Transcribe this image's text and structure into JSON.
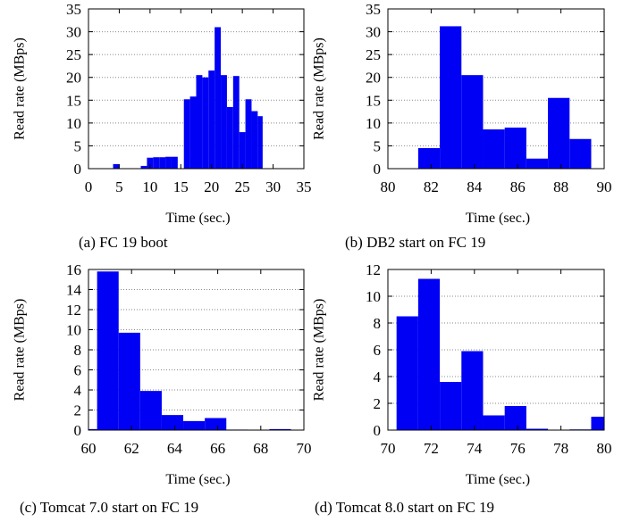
{
  "chart_data": [
    {
      "type": "bar",
      "caption": "(a) FC 19 boot",
      "xlabel": "Time (sec.)",
      "ylabel": "Read rate (MBps)",
      "xlim": [
        0,
        35
      ],
      "ylim": [
        0,
        35
      ],
      "xticks": [
        0,
        5,
        10,
        15,
        20,
        25,
        30,
        35
      ],
      "yticks": [
        0,
        5,
        10,
        15,
        20,
        25,
        30,
        35
      ],
      "grid": "horizontal-dotted",
      "bars": [
        {
          "x0": 4,
          "x1": 5,
          "y": 1.0
        },
        {
          "x0": 8.5,
          "x1": 9.5,
          "y": 0.6
        },
        {
          "x0": 9.5,
          "x1": 10.5,
          "y": 2.4
        },
        {
          "x0": 10.5,
          "x1": 11.5,
          "y": 2.5
        },
        {
          "x0": 11.5,
          "x1": 12.5,
          "y": 2.5
        },
        {
          "x0": 12.5,
          "x1": 13.5,
          "y": 2.6
        },
        {
          "x0": 13.5,
          "x1": 14.5,
          "y": 2.6
        },
        {
          "x0": 15.5,
          "x1": 16.5,
          "y": 15.2
        },
        {
          "x0": 16.5,
          "x1": 17.5,
          "y": 15.8
        },
        {
          "x0": 17.5,
          "x1": 18.5,
          "y": 20.5
        },
        {
          "x0": 18.5,
          "x1": 19.5,
          "y": 20.0
        },
        {
          "x0": 19.5,
          "x1": 20.5,
          "y": 21.5
        },
        {
          "x0": 20.5,
          "x1": 21.5,
          "y": 31.0
        },
        {
          "x0": 21.5,
          "x1": 22.5,
          "y": 20.5
        },
        {
          "x0": 22.5,
          "x1": 23.5,
          "y": 13.5
        },
        {
          "x0": 23.5,
          "x1": 24.5,
          "y": 20.3
        },
        {
          "x0": 24.5,
          "x1": 25.5,
          "y": 8.0
        },
        {
          "x0": 25.5,
          "x1": 26.5,
          "y": 15.2
        },
        {
          "x0": 26.5,
          "x1": 27.5,
          "y": 12.6
        },
        {
          "x0": 27.5,
          "x1": 28.3,
          "y": 11.5
        }
      ]
    },
    {
      "type": "bar",
      "caption": "(b) DB2 start on FC 19",
      "xlabel": "Time (sec.)",
      "ylabel": "Read rate (MBps)",
      "xlim": [
        80,
        90
      ],
      "ylim": [
        0,
        35
      ],
      "xticks": [
        80,
        82,
        84,
        86,
        88,
        90
      ],
      "yticks": [
        0,
        5,
        10,
        15,
        20,
        25,
        30,
        35
      ],
      "grid": "horizontal-dotted",
      "bars": [
        {
          "x0": 81.4,
          "x1": 82.4,
          "y": 4.5
        },
        {
          "x0": 82.4,
          "x1": 83.4,
          "y": 31.2
        },
        {
          "x0": 83.4,
          "x1": 84.4,
          "y": 20.5
        },
        {
          "x0": 84.4,
          "x1": 85.4,
          "y": 8.6
        },
        {
          "x0": 85.4,
          "x1": 86.4,
          "y": 9.0
        },
        {
          "x0": 86.4,
          "x1": 87.4,
          "y": 2.2
        },
        {
          "x0": 87.4,
          "x1": 88.4,
          "y": 15.5
        },
        {
          "x0": 88.4,
          "x1": 89.4,
          "y": 6.5
        }
      ]
    },
    {
      "type": "bar",
      "caption": "(c) Tomcat 7.0 start on FC 19",
      "xlabel": "Time (sec.)",
      "ylabel": "Read rate (MBps)",
      "xlim": [
        60,
        70
      ],
      "ylim": [
        0,
        16
      ],
      "xticks": [
        60,
        62,
        64,
        66,
        68,
        70
      ],
      "yticks": [
        0,
        2,
        4,
        6,
        8,
        10,
        12,
        14,
        16
      ],
      "grid": "horizontal-dotted",
      "bars": [
        {
          "x0": 60.0,
          "x1": 60.4,
          "y": 0.1
        },
        {
          "x0": 60.4,
          "x1": 61.4,
          "y": 15.8
        },
        {
          "x0": 61.4,
          "x1": 62.4,
          "y": 9.7
        },
        {
          "x0": 62.4,
          "x1": 63.4,
          "y": 3.9
        },
        {
          "x0": 63.4,
          "x1": 64.4,
          "y": 1.5
        },
        {
          "x0": 64.4,
          "x1": 65.4,
          "y": 0.9
        },
        {
          "x0": 65.4,
          "x1": 66.4,
          "y": 1.2
        },
        {
          "x0": 66.4,
          "x1": 67.4,
          "y": 0.05
        },
        {
          "x0": 68.4,
          "x1": 69.4,
          "y": 0.1
        }
      ]
    },
    {
      "type": "bar",
      "caption": "(d) Tomcat 8.0 start on FC 19",
      "xlabel": "Time (sec.)",
      "ylabel": "Read rate (MBps)",
      "xlim": [
        70,
        80
      ],
      "ylim": [
        0,
        12
      ],
      "xticks": [
        70,
        72,
        74,
        76,
        78,
        80
      ],
      "yticks": [
        0,
        2,
        4,
        6,
        8,
        10,
        12
      ],
      "grid": "horizontal-dotted",
      "bars": [
        {
          "x0": 70.4,
          "x1": 71.4,
          "y": 8.5
        },
        {
          "x0": 71.4,
          "x1": 72.4,
          "y": 11.3
        },
        {
          "x0": 72.4,
          "x1": 73.4,
          "y": 3.6
        },
        {
          "x0": 73.4,
          "x1": 74.4,
          "y": 5.9
        },
        {
          "x0": 74.4,
          "x1": 75.4,
          "y": 1.1
        },
        {
          "x0": 75.4,
          "x1": 76.4,
          "y": 1.8
        },
        {
          "x0": 76.4,
          "x1": 77.4,
          "y": 0.1
        },
        {
          "x0": 78.4,
          "x1": 79.4,
          "y": 0.05
        },
        {
          "x0": 79.4,
          "x1": 80.0,
          "y": 1.0
        }
      ]
    }
  ],
  "colors": {
    "bar": "#0000f5",
    "grid": "#8a8a8a",
    "axis": "#000000"
  }
}
